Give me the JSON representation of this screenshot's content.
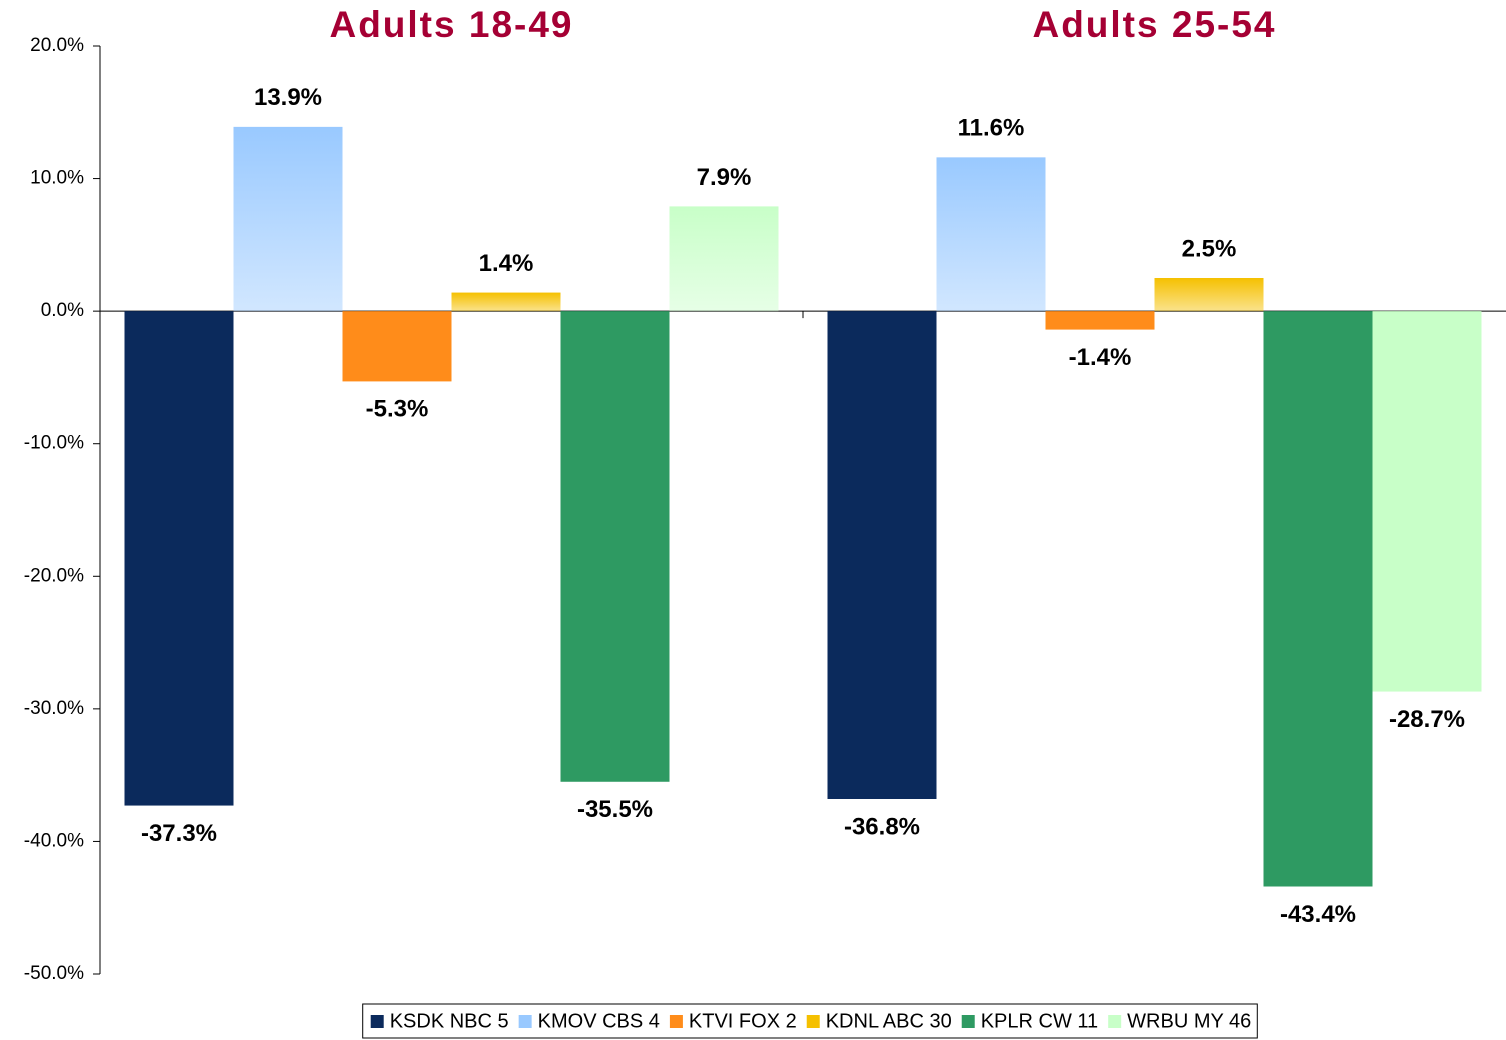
{
  "chart_data": {
    "type": "bar",
    "categories": [
      "Adults 18-49",
      "Adults 25-54"
    ],
    "series": [
      {
        "name": "KSDK NBC 5",
        "color": "#0b2a5c",
        "values": [
          -37.3,
          -36.8
        ],
        "value_labels": [
          "-37.3%",
          "-36.8%"
        ]
      },
      {
        "name": "KMOV CBS 4",
        "color": "#99c9ff",
        "values": [
          13.9,
          11.6
        ],
        "value_labels": [
          "13.9%",
          "11.6%"
        ]
      },
      {
        "name": "KTVI FOX 2",
        "color": "#ff8c1a",
        "values": [
          -5.3,
          -1.4
        ],
        "value_labels": [
          "-5.3%",
          "-1.4%"
        ]
      },
      {
        "name": "KDNL ABC 30",
        "color": "#f5c000",
        "values": [
          1.4,
          2.5
        ],
        "value_labels": [
          "1.4%",
          "2.5%"
        ]
      },
      {
        "name": "KPLR CW 11",
        "color": "#2e9a62",
        "values": [
          -35.5,
          -43.4
        ],
        "value_labels": [
          "-35.5%",
          "-43.4%"
        ]
      },
      {
        "name": "WRBU MY 46",
        "color": "#c8ffc8",
        "values": [
          7.9,
          -28.7
        ],
        "value_labels": [
          "7.9%",
          "-28.7%"
        ]
      }
    ],
    "ylim": [
      -50,
      20
    ],
    "yticks": [
      {
        "value": -50,
        "label": "-50.0%"
      },
      {
        "value": -40,
        "label": "-40.0%"
      },
      {
        "value": -30,
        "label": "-30.0%"
      },
      {
        "value": -20,
        "label": "-20.0%"
      },
      {
        "value": -10,
        "label": "-10.0%"
      },
      {
        "value": 0,
        "label": "0.0%"
      },
      {
        "value": 10,
        "label": "10.0%"
      },
      {
        "value": 20,
        "label": "20.0%"
      }
    ],
    "legend": "bottom"
  }
}
